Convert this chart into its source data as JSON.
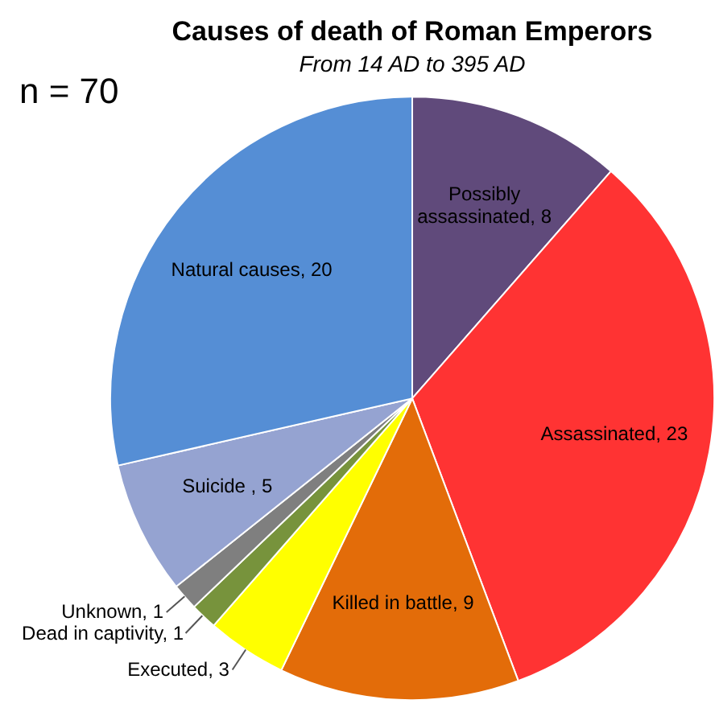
{
  "chart_data": {
    "type": "pie",
    "title": "Causes of death of Roman Emperors",
    "subtitle": "From 14 AD to 395 AD",
    "annotations": [
      "n = 70"
    ],
    "categories": [
      "Possibly assassinated, 8",
      "Assassinated, 23",
      "Killed in battle, 9",
      "Executed, 3",
      "Dead in captivity, 1",
      "Unknown, 1",
      "Suicide , 5",
      "Natural causes, 20"
    ],
    "values": [
      8,
      23,
      9,
      3,
      1,
      1,
      5,
      20
    ],
    "colors": [
      "#604a7b",
      "#ff3333",
      "#e36c09",
      "#ffff00",
      "#77933c",
      "#7f7f7f",
      "#95a3d1",
      "#558ed5"
    ],
    "legend": false
  }
}
